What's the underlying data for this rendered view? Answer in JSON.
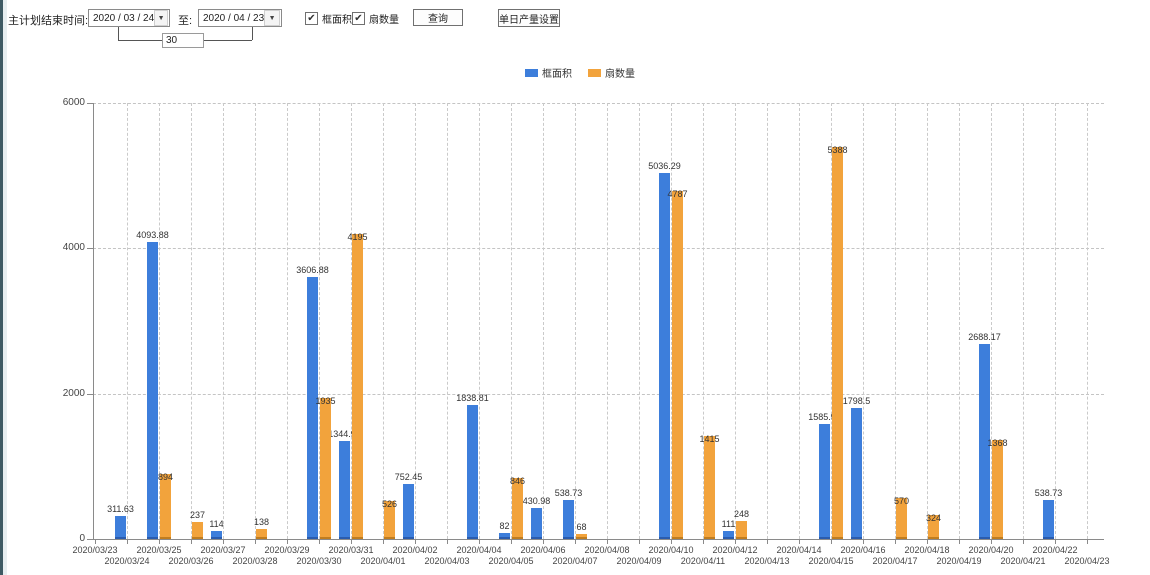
{
  "icons": {
    "dropdown": "▼",
    "check": "✔"
  },
  "toolbar": {
    "plan_end_label": "主计划结束时间:",
    "start_date": "2020 / 03 / 24",
    "to_label": "至:",
    "end_date": "2020 / 04 / 23",
    "interval_days": "30",
    "checkboxes": [
      {
        "label": "框面积",
        "checked": true
      },
      {
        "label": "扇数量",
        "checked": true
      }
    ],
    "query_button": "查询",
    "daily_output_button": "单日产量设置"
  },
  "chart_data": {
    "type": "bar",
    "title": "",
    "xlabel": "",
    "ylabel": "",
    "ylim": [
      0,
      6000
    ],
    "yticks": [
      0,
      2000,
      4000,
      6000
    ],
    "grid": true,
    "legend_position": "top",
    "categories": [
      "2020/03/23",
      "2020/03/24",
      "2020/03/25",
      "2020/03/26",
      "2020/03/27",
      "2020/03/28",
      "2020/03/29",
      "2020/03/30",
      "2020/03/31",
      "2020/04/01",
      "2020/04/02",
      "2020/04/03",
      "2020/04/04",
      "2020/04/05",
      "2020/04/06",
      "2020/04/07",
      "2020/04/08",
      "2020/04/09",
      "2020/04/10",
      "2020/04/11",
      "2020/04/12",
      "2020/04/13",
      "2020/04/14",
      "2020/04/15",
      "2020/04/16",
      "2020/04/17",
      "2020/04/18",
      "2020/04/19",
      "2020/04/20",
      "2020/04/21",
      "2020/04/22",
      "2020/04/23"
    ],
    "series": [
      {
        "name": "框面积",
        "color": "#3d7edb",
        "edge_color": "#2a5cae",
        "values": [
          null,
          311.63,
          4093.88,
          null,
          114,
          null,
          null,
          3606.88,
          1344.95,
          null,
          752.45,
          null,
          1838.81,
          82,
          430.98,
          538.73,
          null,
          null,
          5036.29,
          null,
          111,
          null,
          null,
          1585.96,
          1798.5,
          null,
          null,
          null,
          2688.17,
          null,
          538.73,
          null
        ]
      },
      {
        "name": "扇数量",
        "color": "#f2a33c",
        "edge_color": "#c07d1f",
        "values": [
          null,
          null,
          894,
          237,
          null,
          138,
          null,
          1935,
          4195,
          526,
          null,
          null,
          null,
          846,
          null,
          68,
          null,
          null,
          4787,
          1415,
          248,
          null,
          null,
          5388,
          null,
          570,
          324,
          null,
          1368,
          null,
          null,
          null
        ]
      }
    ]
  }
}
